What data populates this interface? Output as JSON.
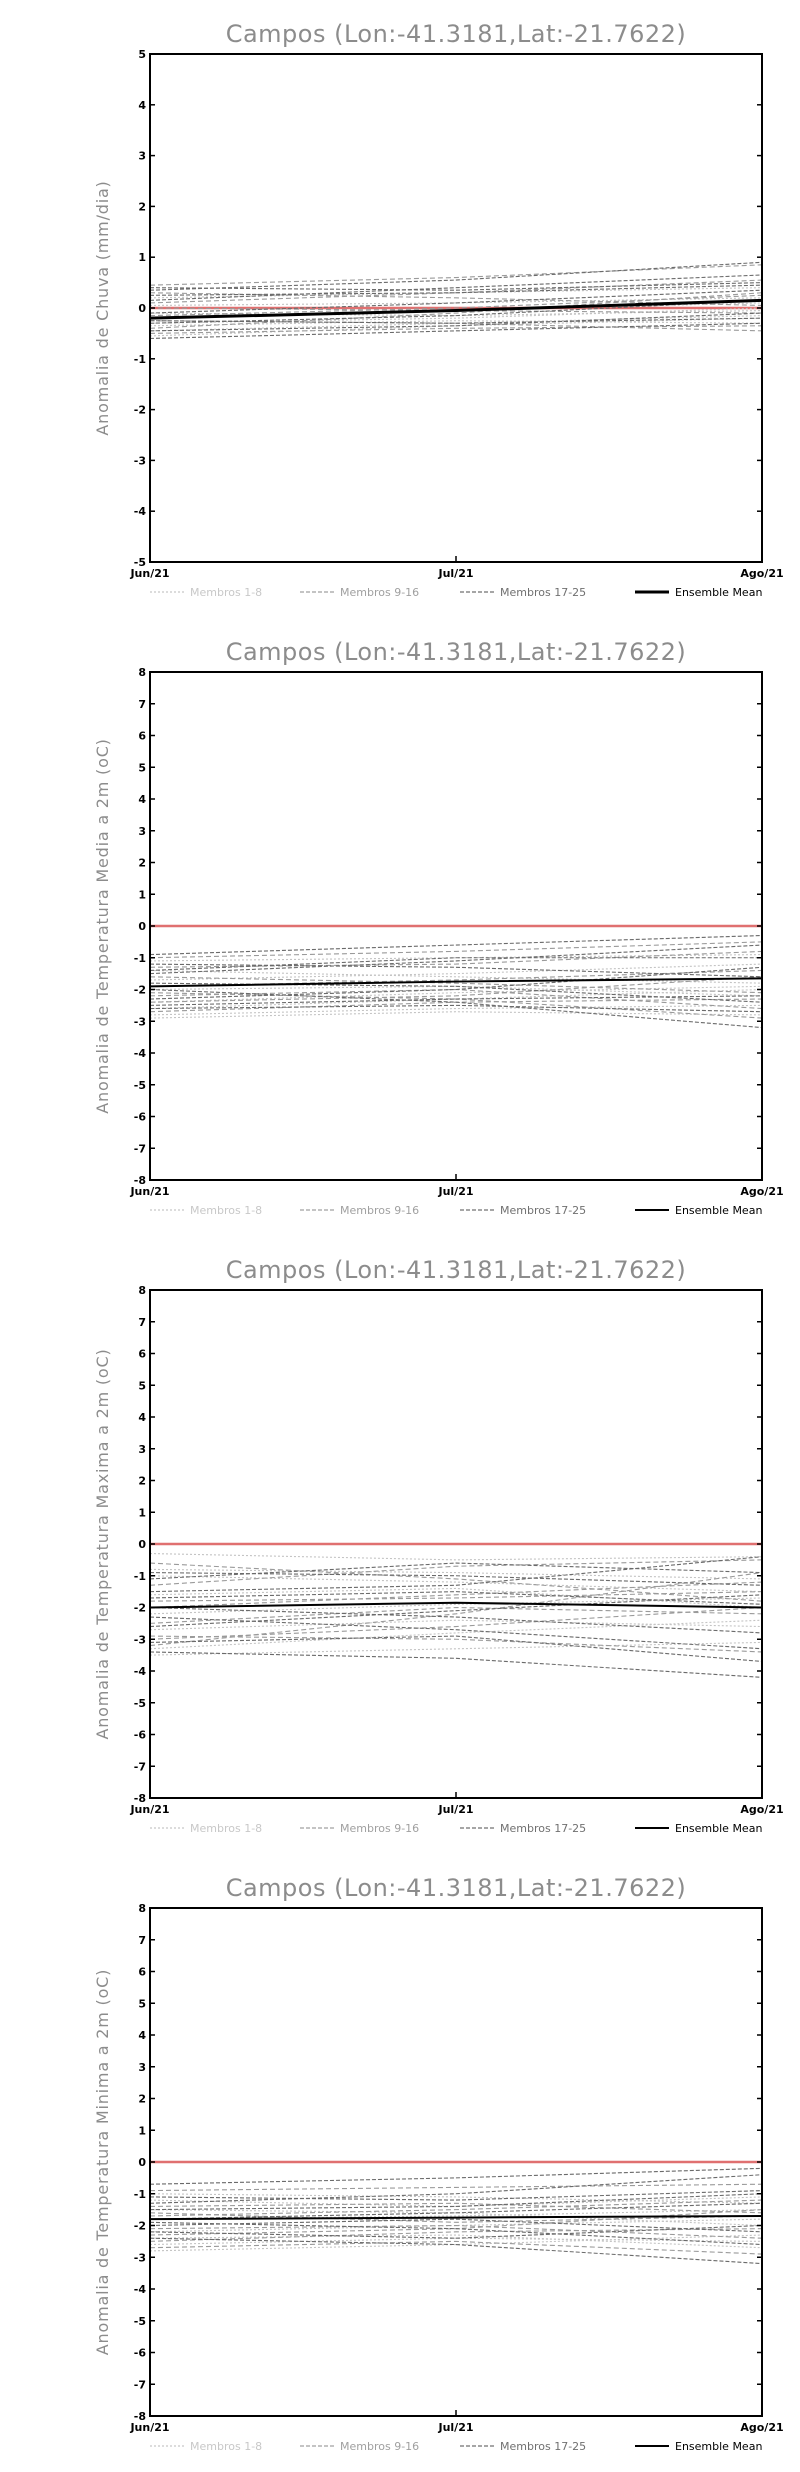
{
  "chart_data": [
    {
      "type": "line",
      "title": "Campos (Lon:-41.3181,Lat:-21.7622)",
      "ylabel": "Anomalia de Chuva (mm/dia)",
      "xlabel": "",
      "categories": [
        "Jun/21",
        "Jul/21",
        "Ago/21"
      ],
      "ylim": [
        -5,
        5
      ],
      "yticks": [
        -5,
        -4,
        -3,
        -2,
        -1,
        0,
        1,
        2,
        3,
        4,
        5
      ],
      "grid": false,
      "legend_position": "bottom",
      "reference_line": {
        "y": 0,
        "color": "#e07070"
      },
      "legend": [
        {
          "name": "Membros 1-8",
          "color": "#c8c8c8",
          "dash": "dotted"
        },
        {
          "name": "Membros 9-16",
          "color": "#a0a0a0",
          "dash": "dashed"
        },
        {
          "name": "Membros 17-25",
          "color": "#707070",
          "dash": "dashed"
        },
        {
          "name": "Ensemble Mean",
          "color": "#000000",
          "dash": "solid"
        }
      ],
      "members": [
        {
          "group": 1,
          "values": [
            -0.45,
            -0.3,
            -0.15
          ]
        },
        {
          "group": 1,
          "values": [
            -0.2,
            -0.05,
            0.1
          ]
        },
        {
          "group": 1,
          "values": [
            0.05,
            0.1,
            0.2
          ]
        },
        {
          "group": 1,
          "values": [
            -0.35,
            -0.25,
            -0.3
          ]
        },
        {
          "group": 1,
          "values": [
            -0.55,
            -0.35,
            -0.2
          ]
        },
        {
          "group": 1,
          "values": [
            0.2,
            0.3,
            0.4
          ]
        },
        {
          "group": 1,
          "values": [
            -0.1,
            -0.15,
            -0.05
          ]
        },
        {
          "group": 1,
          "values": [
            -0.3,
            -0.2,
            0.0
          ]
        },
        {
          "group": 2,
          "values": [
            0.45,
            0.6,
            0.85
          ]
        },
        {
          "group": 2,
          "values": [
            -0.25,
            -0.3,
            -0.45
          ]
        },
        {
          "group": 2,
          "values": [
            0.1,
            0.3,
            0.55
          ]
        },
        {
          "group": 2,
          "values": [
            -0.4,
            -0.1,
            0.3
          ]
        },
        {
          "group": 2,
          "values": [
            0.3,
            0.2,
            0.05
          ]
        },
        {
          "group": 2,
          "values": [
            -0.15,
            0.0,
            0.25
          ]
        },
        {
          "group": 2,
          "values": [
            -0.5,
            -0.4,
            -0.35
          ]
        },
        {
          "group": 2,
          "values": [
            0.0,
            -0.05,
            -0.1
          ]
        },
        {
          "group": 3,
          "values": [
            0.35,
            0.55,
            0.9
          ]
        },
        {
          "group": 3,
          "values": [
            -0.6,
            -0.45,
            -0.3
          ]
        },
        {
          "group": 3,
          "values": [
            0.15,
            0.4,
            0.65
          ]
        },
        {
          "group": 3,
          "values": [
            -0.3,
            -0.15,
            0.15
          ]
        },
        {
          "group": 3,
          "values": [
            0.25,
            0.3,
            0.45
          ]
        },
        {
          "group": 3,
          "values": [
            -0.45,
            -0.35,
            -0.1
          ]
        },
        {
          "group": 3,
          "values": [
            -0.1,
            0.1,
            0.35
          ]
        },
        {
          "group": 3,
          "values": [
            0.4,
            0.35,
            0.5
          ]
        },
        {
          "group": 3,
          "values": [
            -0.25,
            -0.3,
            -0.2
          ]
        }
      ],
      "ensemble_mean": [
        -0.2,
        -0.05,
        0.15
      ]
    },
    {
      "type": "line",
      "title": "Campos (Lon:-41.3181,Lat:-21.7622)",
      "ylabel": "Anomalia de Temperatura Media a 2m (oC)",
      "xlabel": "",
      "categories": [
        "Jun/21",
        "Jul/21",
        "Ago/21"
      ],
      "ylim": [
        -8,
        8
      ],
      "yticks": [
        -8,
        -7,
        -6,
        -5,
        -4,
        -3,
        -2,
        -1,
        0,
        1,
        2,
        3,
        4,
        5,
        6,
        7,
        8
      ],
      "grid": false,
      "legend_position": "bottom",
      "reference_line": {
        "y": 0,
        "color": "#e07070"
      },
      "legend": [
        {
          "name": "Membros 1-8",
          "color": "#c8c8c8",
          "dash": "dotted"
        },
        {
          "name": "Membros 9-16",
          "color": "#a0a0a0",
          "dash": "dashed"
        },
        {
          "name": "Membros 17-25",
          "color": "#707070",
          "dash": "dashed"
        },
        {
          "name": "Ensemble Mean",
          "color": "#000000",
          "dash": "solid"
        }
      ],
      "members": [
        {
          "group": 1,
          "values": [
            -2.8,
            -2.6,
            -2.5
          ]
        },
        {
          "group": 1,
          "values": [
            -1.1,
            -1.0,
            -0.9
          ]
        },
        {
          "group": 1,
          "values": [
            -2.4,
            -2.1,
            -1.9
          ]
        },
        {
          "group": 1,
          "values": [
            -1.7,
            -1.5,
            -1.2
          ]
        },
        {
          "group": 1,
          "values": [
            -2.9,
            -2.7,
            -2.8
          ]
        },
        {
          "group": 1,
          "values": [
            -1.4,
            -1.6,
            -1.8
          ]
        },
        {
          "group": 1,
          "values": [
            -2.0,
            -1.9,
            -2.2
          ]
        },
        {
          "group": 1,
          "values": [
            -2.6,
            -2.3,
            -2.0
          ]
        },
        {
          "group": 2,
          "values": [
            -1.9,
            -1.7,
            -1.4
          ]
        },
        {
          "group": 2,
          "values": [
            -2.2,
            -2.0,
            -2.6
          ]
        },
        {
          "group": 2,
          "values": [
            -1.3,
            -1.2,
            -0.8
          ]
        },
        {
          "group": 2,
          "values": [
            -2.7,
            -2.4,
            -2.3
          ]
        },
        {
          "group": 2,
          "values": [
            -1.6,
            -1.8,
            -2.1
          ]
        },
        {
          "group": 2,
          "values": [
            -2.4,
            -2.2,
            -1.6
          ]
        },
        {
          "group": 2,
          "values": [
            -1.0,
            -0.8,
            -0.5
          ]
        },
        {
          "group": 2,
          "values": [
            -2.1,
            -2.3,
            -2.9
          ]
        },
        {
          "group": 3,
          "values": [
            -1.5,
            -1.1,
            -0.6
          ]
        },
        {
          "group": 3,
          "values": [
            -2.5,
            -2.3,
            -2.2
          ]
        },
        {
          "group": 3,
          "values": [
            -0.9,
            -0.6,
            -0.3
          ]
        },
        {
          "group": 3,
          "values": [
            -1.8,
            -1.9,
            -2.4
          ]
        },
        {
          "group": 3,
          "values": [
            -2.3,
            -2.0,
            -1.3
          ]
        },
        {
          "group": 3,
          "values": [
            -1.2,
            -1.3,
            -1.6
          ]
        },
        {
          "group": 3,
          "values": [
            -2.0,
            -2.4,
            -3.2
          ]
        },
        {
          "group": 3,
          "values": [
            -1.4,
            -1.0,
            -1.0
          ]
        },
        {
          "group": 3,
          "values": [
            -2.6,
            -2.5,
            -2.7
          ]
        }
      ],
      "ensemble_mean": [
        -1.9,
        -1.75,
        -1.65
      ]
    },
    {
      "type": "line",
      "title": "Campos (Lon:-41.3181,Lat:-21.7622)",
      "ylabel": "Anomalia de Temperatura Maxima a 2m (oC)",
      "xlabel": "",
      "categories": [
        "Jun/21",
        "Jul/21",
        "Ago/21"
      ],
      "ylim": [
        -8,
        8
      ],
      "yticks": [
        -8,
        -7,
        -6,
        -5,
        -4,
        -3,
        -2,
        -1,
        0,
        1,
        2,
        3,
        4,
        5,
        6,
        7,
        8
      ],
      "grid": false,
      "legend_position": "bottom",
      "reference_line": {
        "y": 0,
        "color": "#e07070"
      },
      "legend": [
        {
          "name": "Membros 1-8",
          "color": "#c8c8c8",
          "dash": "dotted"
        },
        {
          "name": "Membros 9-16",
          "color": "#a0a0a0",
          "dash": "dashed"
        },
        {
          "name": "Membros 17-25",
          "color": "#707070",
          "dash": "dashed"
        },
        {
          "name": "Ensemble Mean",
          "color": "#000000",
          "dash": "solid"
        }
      ],
      "members": [
        {
          "group": 1,
          "values": [
            -0.3,
            -0.5,
            -0.4
          ]
        },
        {
          "group": 1,
          "values": [
            -3.3,
            -2.8,
            -2.4
          ]
        },
        {
          "group": 1,
          "values": [
            -1.0,
            -1.2,
            -1.5
          ]
        },
        {
          "group": 1,
          "values": [
            -2.2,
            -1.9,
            -1.7
          ]
        },
        {
          "group": 1,
          "values": [
            -3.5,
            -3.3,
            -3.1
          ]
        },
        {
          "group": 1,
          "values": [
            -1.6,
            -1.4,
            -2.0
          ]
        },
        {
          "group": 1,
          "values": [
            -2.7,
            -2.4,
            -2.6
          ]
        },
        {
          "group": 1,
          "values": [
            -0.8,
            -0.9,
            -1.1
          ]
        },
        {
          "group": 2,
          "values": [
            -2.0,
            -1.6,
            -1.2
          ]
        },
        {
          "group": 2,
          "values": [
            -3.2,
            -2.2,
            -0.9
          ]
        },
        {
          "group": 2,
          "values": [
            -0.6,
            -1.1,
            -1.8
          ]
        },
        {
          "group": 2,
          "values": [
            -2.5,
            -2.0,
            -2.2
          ]
        },
        {
          "group": 2,
          "values": [
            -1.3,
            -0.7,
            -0.5
          ]
        },
        {
          "group": 2,
          "values": [
            -2.9,
            -3.0,
            -3.4
          ]
        },
        {
          "group": 2,
          "values": [
            -1.8,
            -1.7,
            -1.5
          ]
        },
        {
          "group": 2,
          "values": [
            -3.0,
            -2.6,
            -2.0
          ]
        },
        {
          "group": 3,
          "values": [
            -1.1,
            -0.6,
            -0.9
          ]
        },
        {
          "group": 3,
          "values": [
            -2.3,
            -2.7,
            -3.3
          ]
        },
        {
          "group": 3,
          "values": [
            -1.5,
            -1.3,
            -0.4
          ]
        },
        {
          "group": 3,
          "values": [
            -3.4,
            -3.6,
            -4.2
          ]
        },
        {
          "group": 3,
          "values": [
            -0.9,
            -1.0,
            -1.3
          ]
        },
        {
          "group": 3,
          "values": [
            -2.0,
            -2.3,
            -2.8
          ]
        },
        {
          "group": 3,
          "values": [
            -3.1,
            -2.9,
            -3.7
          ]
        },
        {
          "group": 3,
          "values": [
            -1.7,
            -1.5,
            -1.9
          ]
        },
        {
          "group": 3,
          "values": [
            -2.6,
            -2.1,
            -1.6
          ]
        }
      ],
      "ensemble_mean": [
        -2.0,
        -1.85,
        -2.0
      ]
    },
    {
      "type": "line",
      "title": "Campos (Lon:-41.3181,Lat:-21.7622)",
      "ylabel": "Anomalia de Temperatura Minima a 2m (oC)",
      "xlabel": "",
      "categories": [
        "Jun/21",
        "Jul/21",
        "Ago/21"
      ],
      "ylim": [
        -8,
        8
      ],
      "yticks": [
        -8,
        -7,
        -6,
        -5,
        -4,
        -3,
        -2,
        -1,
        0,
        1,
        2,
        3,
        4,
        5,
        6,
        7,
        8
      ],
      "grid": false,
      "legend_position": "bottom",
      "reference_line": {
        "y": 0,
        "color": "#e07070"
      },
      "legend": [
        {
          "name": "Membros 1-8",
          "color": "#c8c8c8",
          "dash": "dotted"
        },
        {
          "name": "Membros 9-16",
          "color": "#a0a0a0",
          "dash": "dashed"
        },
        {
          "name": "Membros 17-25",
          "color": "#707070",
          "dash": "dashed"
        },
        {
          "name": "Ensemble Mean",
          "color": "#000000",
          "dash": "solid"
        }
      ],
      "members": [
        {
          "group": 1,
          "values": [
            -2.6,
            -2.4,
            -2.5
          ]
        },
        {
          "group": 1,
          "values": [
            -1.0,
            -1.1,
            -1.3
          ]
        },
        {
          "group": 1,
          "values": [
            -2.2,
            -2.0,
            -1.8
          ]
        },
        {
          "group": 1,
          "values": [
            -1.5,
            -1.6,
            -2.0
          ]
        },
        {
          "group": 1,
          "values": [
            -2.8,
            -2.6,
            -2.3
          ]
        },
        {
          "group": 1,
          "values": [
            -1.8,
            -1.7,
            -1.5
          ]
        },
        {
          "group": 1,
          "values": [
            -2.4,
            -2.3,
            -2.7
          ]
        },
        {
          "group": 1,
          "values": [
            -1.2,
            -1.4,
            -1.1
          ]
        },
        {
          "group": 2,
          "values": [
            -1.7,
            -1.5,
            -1.2
          ]
        },
        {
          "group": 2,
          "values": [
            -2.5,
            -2.2,
            -2.1
          ]
        },
        {
          "group": 2,
          "values": [
            -0.9,
            -0.8,
            -0.7
          ]
        },
        {
          "group": 2,
          "values": [
            -2.1,
            -2.0,
            -2.4
          ]
        },
        {
          "group": 2,
          "values": [
            -1.4,
            -1.3,
            -1.6
          ]
        },
        {
          "group": 2,
          "values": [
            -2.7,
            -2.5,
            -2.9
          ]
        },
        {
          "group": 2,
          "values": [
            -1.6,
            -1.9,
            -1.7
          ]
        },
        {
          "group": 2,
          "values": [
            -2.3,
            -2.1,
            -1.5
          ]
        },
        {
          "group": 3,
          "values": [
            -0.7,
            -0.5,
            -0.2
          ]
        },
        {
          "group": 3,
          "values": [
            -1.9,
            -2.1,
            -2.6
          ]
        },
        {
          "group": 3,
          "values": [
            -1.3,
            -1.0,
            -0.4
          ]
        },
        {
          "group": 3,
          "values": [
            -2.4,
            -2.6,
            -3.2
          ]
        },
        {
          "group": 3,
          "values": [
            -1.1,
            -1.2,
            -0.9
          ]
        },
        {
          "group": 3,
          "values": [
            -2.0,
            -1.8,
            -2.2
          ]
        },
        {
          "group": 3,
          "values": [
            -1.5,
            -1.4,
            -1.0
          ]
        },
        {
          "group": 3,
          "values": [
            -2.2,
            -2.4,
            -2.0
          ]
        },
        {
          "group": 3,
          "values": [
            -1.8,
            -1.6,
            -1.3
          ]
        }
      ],
      "ensemble_mean": [
        -1.8,
        -1.75,
        -1.7
      ]
    }
  ]
}
